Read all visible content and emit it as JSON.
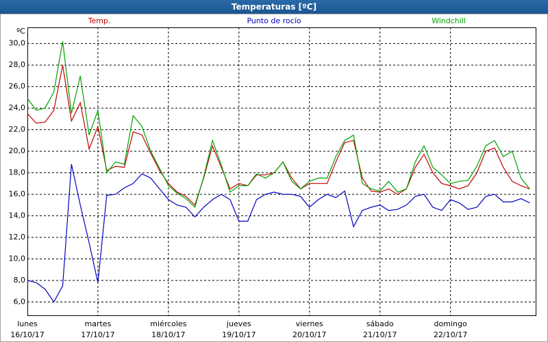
{
  "chart_data": {
    "type": "line",
    "title": "Temperaturas [ºC]",
    "y_label": "ºC",
    "x": [
      0,
      3,
      6,
      9,
      12,
      15,
      18,
      21,
      24,
      27,
      30,
      33,
      36,
      39,
      42,
      45,
      48,
      51,
      54,
      57,
      60,
      63,
      66,
      69,
      72,
      75,
      78,
      81,
      84,
      87,
      90,
      93,
      96,
      99,
      102,
      105,
      108,
      111,
      114,
      117,
      120,
      123,
      126,
      129,
      132,
      135,
      138,
      141,
      144,
      147,
      150,
      153,
      156,
      159,
      162,
      165,
      168,
      171
    ],
    "series": [
      {
        "name": "Temp.",
        "color": "#c00000",
        "values": [
          23.5,
          22.6,
          22.7,
          23.8,
          28.0,
          22.8,
          24.5,
          20.2,
          22.3,
          18.2,
          18.6,
          18.5,
          21.8,
          21.5,
          19.8,
          18.2,
          17.0,
          16.2,
          15.8,
          15.0,
          17.5,
          20.5,
          18.5,
          16.5,
          17.0,
          16.8,
          17.8,
          17.8,
          18.0,
          19.0,
          17.5,
          16.5,
          17.0,
          17.0,
          17.0,
          19.0,
          20.8,
          21.0,
          17.5,
          16.3,
          16.2,
          16.5,
          16.0,
          16.5,
          18.5,
          19.7,
          18.0,
          17.0,
          16.8,
          16.5,
          16.8,
          18.0,
          20.0,
          20.3,
          18.5,
          17.2,
          16.8,
          16.5
        ]
      },
      {
        "name": "Punto de rocío",
        "color": "#0000c0",
        "values": [
          8.0,
          7.8,
          7.2,
          6.0,
          7.5,
          18.8,
          15.0,
          11.5,
          7.8,
          15.9,
          16.0,
          16.6,
          17.0,
          17.9,
          17.5,
          16.5,
          15.5,
          15.0,
          14.8,
          13.9,
          14.8,
          15.5,
          16.0,
          15.5,
          13.5,
          13.5,
          15.5,
          16.0,
          16.2,
          16.0,
          16.0,
          15.8,
          14.8,
          15.5,
          16.0,
          15.7,
          16.3,
          13.0,
          14.5,
          14.8,
          15.0,
          14.5,
          14.6,
          15.0,
          15.8,
          16.0,
          14.8,
          14.5,
          15.5,
          15.2,
          14.6,
          14.8,
          15.8,
          16.0,
          15.3,
          15.3,
          15.6,
          15.2
        ]
      },
      {
        "name": "Windchill",
        "color": "#00a000",
        "values": [
          24.9,
          23.8,
          24.0,
          25.5,
          30.2,
          23.5,
          27.0,
          21.5,
          23.8,
          18.0,
          19.0,
          18.8,
          23.3,
          22.3,
          20.0,
          18.4,
          16.8,
          16.1,
          15.6,
          14.8,
          17.6,
          21.0,
          18.7,
          16.2,
          16.8,
          16.8,
          17.9,
          17.5,
          18.0,
          19.0,
          17.2,
          16.5,
          17.2,
          17.5,
          17.5,
          19.5,
          21.0,
          21.5,
          17.0,
          16.5,
          16.3,
          17.2,
          16.2,
          16.5,
          19.0,
          20.5,
          18.5,
          17.8,
          17.0,
          17.2,
          17.3,
          18.6,
          20.5,
          21.0,
          19.5,
          20.0,
          17.5,
          16.5
        ]
      }
    ],
    "xlim": [
      0,
      173
    ],
    "xticks": [
      {
        "value": 0,
        "label": "lunes\n16/10/17"
      },
      {
        "value": 24,
        "label": "martes\n17/10/17"
      },
      {
        "value": 48,
        "label": "miércoles\n18/10/17"
      },
      {
        "value": 72,
        "label": "jueves\n19/10/17"
      },
      {
        "value": 96,
        "label": "viernes\n20/10/17"
      },
      {
        "value": 120,
        "label": "sábado\n21/10/17"
      },
      {
        "value": 144,
        "label": "domingo\n22/10/17"
      }
    ],
    "ylim": [
      4.7,
      31.5
    ],
    "yticks": [
      {
        "value": 6,
        "label": "6,0"
      },
      {
        "value": 8,
        "label": "8,0"
      },
      {
        "value": 10,
        "label": "10,0"
      },
      {
        "value": 12,
        "label": "12,0"
      },
      {
        "value": 14,
        "label": "14,0"
      },
      {
        "value": 16,
        "label": "16,0"
      },
      {
        "value": 18,
        "label": "18,0"
      },
      {
        "value": 20,
        "label": "20,0"
      },
      {
        "value": 22,
        "label": "22,0"
      },
      {
        "value": 24,
        "label": "24,0"
      },
      {
        "value": 26,
        "label": "26,0"
      },
      {
        "value": 28,
        "label": "28,0"
      },
      {
        "value": 30,
        "label": "30,0"
      }
    ],
    "grid": true
  }
}
